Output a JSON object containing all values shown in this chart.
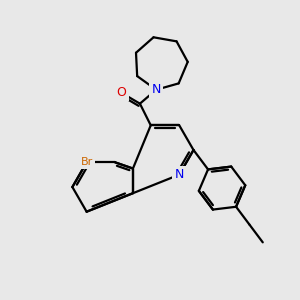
{
  "bg_color": "#e8e8e8",
  "bond_color": "#000000",
  "N_color": "#0000ee",
  "O_color": "#dd0000",
  "Br_color": "#cc6600",
  "lw": 1.6,
  "xlim": [
    0,
    10
  ],
  "ylim": [
    0,
    10
  ]
}
